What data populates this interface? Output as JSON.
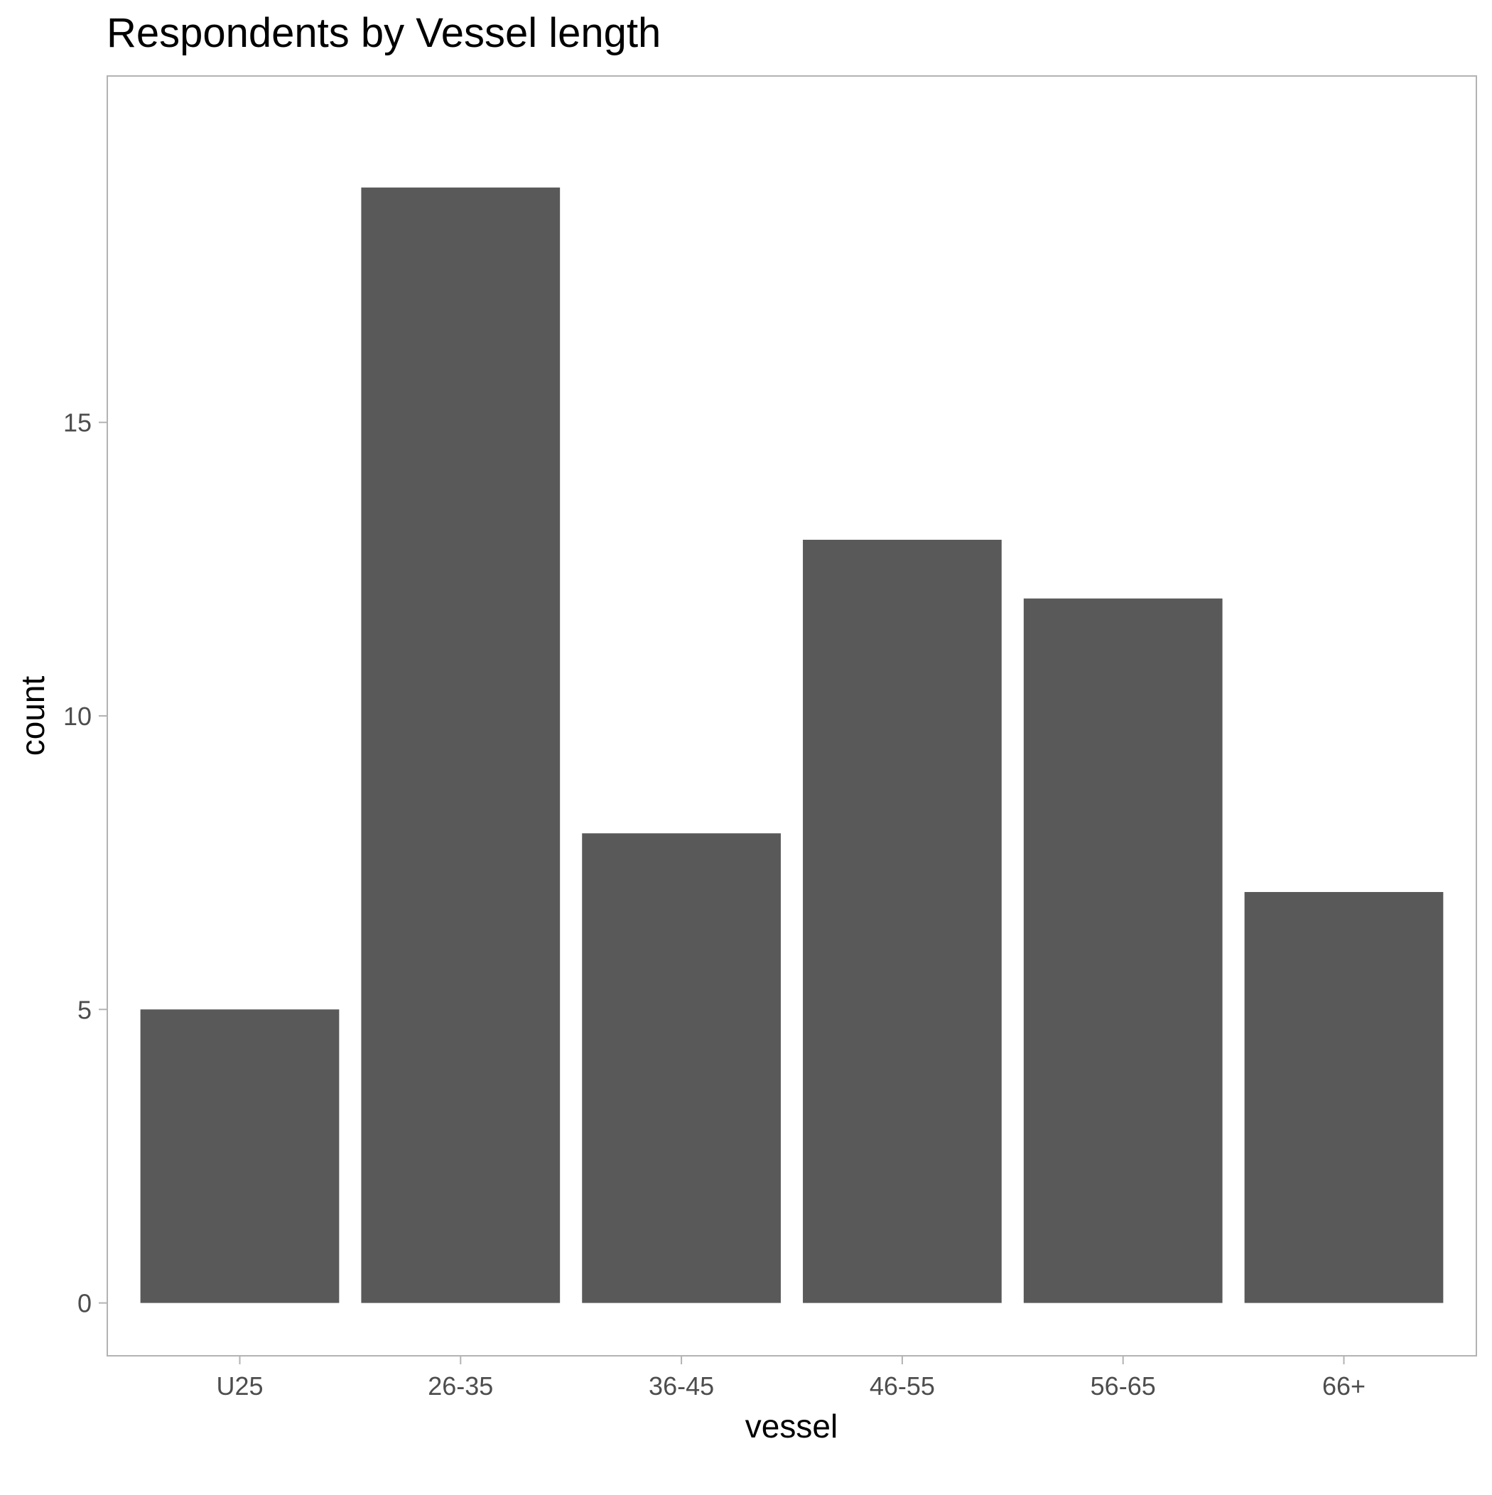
{
  "chart_data": {
    "type": "bar",
    "title": "Respondents by Vessel length",
    "xlabel": "vessel",
    "ylabel": "count",
    "categories": [
      "U25",
      "26-35",
      "36-45",
      "46-55",
      "56-65",
      "66+"
    ],
    "values": [
      5,
      19,
      8,
      13,
      12,
      7
    ],
    "ylim": [
      -0.9,
      20.9
    ],
    "yticks": [
      0,
      5,
      10,
      15
    ],
    "grid": false,
    "legend": "none",
    "colors": {
      "bar": "#595959",
      "panel_border": "#b3b3b3",
      "tick": "#4d4d4d",
      "text": "#000000",
      "background": "#ffffff"
    }
  }
}
